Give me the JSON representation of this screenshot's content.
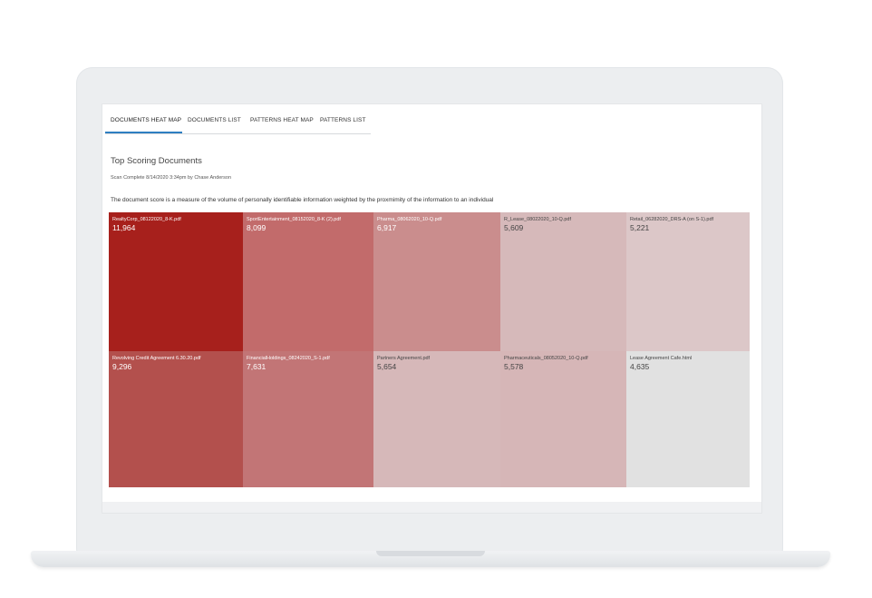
{
  "tabs": [
    {
      "label": "DOCUMENTS HEAT MAP",
      "active": true
    },
    {
      "label": "DOCUMENTS LIST",
      "active": false
    },
    {
      "label": "PATTERNS HEAT MAP",
      "active": false
    },
    {
      "label": "PATTERNS LIST",
      "active": false
    }
  ],
  "heading": {
    "title": "Top Scoring Documents",
    "subtitle": "Scan Complete 8/14/2020 3:34pm by Chase Anderson",
    "description": "The document score is a measure of the volume of personally identifiable information weighted by the proxmimity of the information to an individual"
  },
  "colors": {
    "active_tab_underline": "#2e7fc1",
    "heat_high": "#a7201c",
    "heat_low": "#e1e1e1"
  },
  "documents": [
    {
      "name": "RealtyCorp_08122020_8-K.pdf",
      "score": "11,964",
      "color": "#a7201c",
      "text_color": "#ffffff"
    },
    {
      "name": "SportEntertainment_08152020_8-K (2).pdf",
      "score": "8,099",
      "color": "#c26b6b",
      "text_color": "#ffffff"
    },
    {
      "name": "Pharma_08062020_10-Q.pdf",
      "score": "6,917",
      "color": "#ca8d8d",
      "text_color": "#ffffff"
    },
    {
      "name": "R_Lease_08022020_10-Q.pdf",
      "score": "5,609",
      "color": "#d6b9ba",
      "text_color": "#444444"
    },
    {
      "name": "Retail_06282020_DRS-A (on S-1).pdf",
      "score": "5,221",
      "color": "#dcc7c8",
      "text_color": "#444444"
    },
    {
      "name": "Revolving Credit Agreement 6.30.20.pdf",
      "score": "9,296",
      "color": "#b3504d",
      "text_color": "#ffffff"
    },
    {
      "name": "FinancialHoldings_08242020_S-1.pdf",
      "score": "7,631",
      "color": "#c27576",
      "text_color": "#ffffff"
    },
    {
      "name": "Partners Agreement.pdf",
      "score": "5,654",
      "color": "#d6b8b9",
      "text_color": "#444444"
    },
    {
      "name": "Pharmaceuticals_08052020_10-Q.pdf",
      "score": "5,578",
      "color": "#d6b6b7",
      "text_color": "#444444"
    },
    {
      "name": "Lease Agreement Cafe.html",
      "score": "4,635",
      "color": "#e1e1e1",
      "text_color": "#444444"
    }
  ]
}
